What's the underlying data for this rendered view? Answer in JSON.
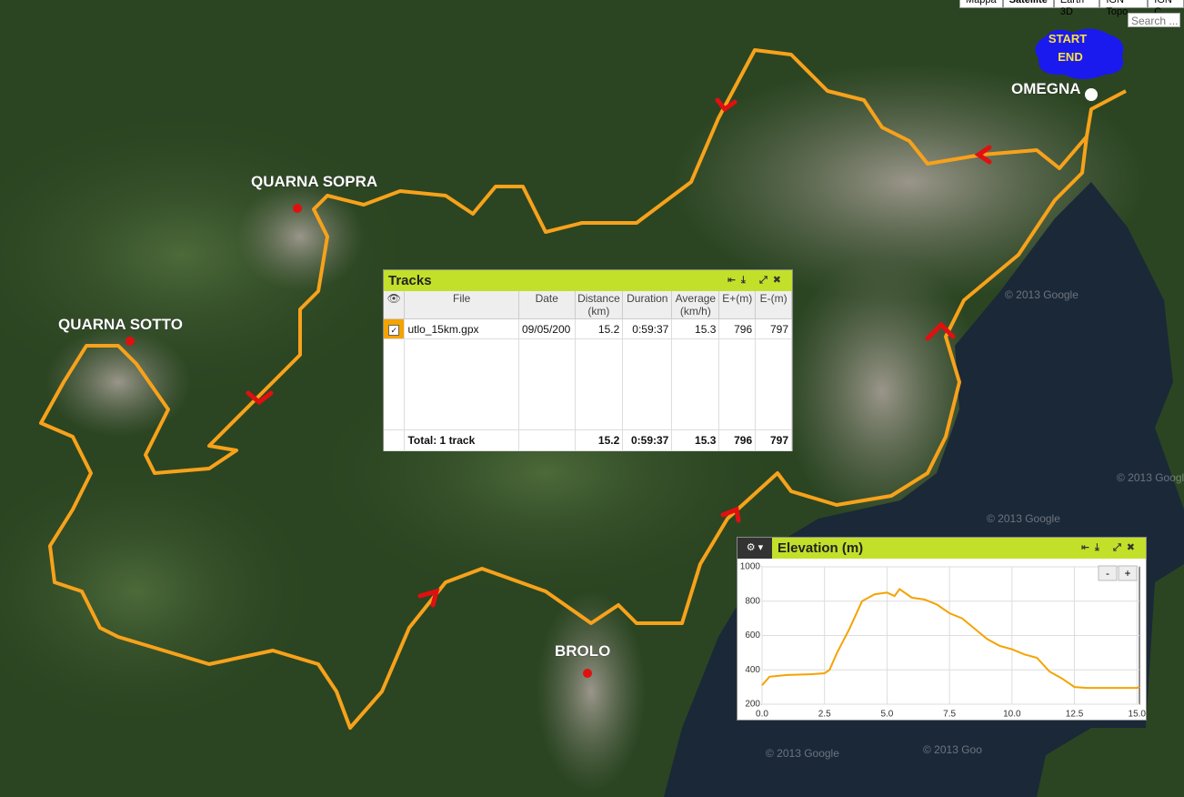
{
  "map": {
    "tabs": [
      "Mappa",
      "Satellite",
      "Earth 3D",
      "IGN Topo",
      "IGN C"
    ],
    "search_placeholder": "Search ...",
    "places": [
      "QUARNA SOPRA",
      "QUARNA SOTTO",
      "BROLO",
      "OMEGNA"
    ],
    "start_end": [
      "START",
      "END"
    ],
    "watermarks": [
      "© 2013 Google",
      "© 2013 Google",
      "© 2013 Google",
      "© 2013 Google",
      "© 2013 Goo"
    ]
  },
  "tracks": {
    "title": "Tracks",
    "columns": [
      "File",
      "Date",
      "Distance (km)",
      "Duration",
      "Average (km/h)",
      "E+(m)",
      "E-(m)"
    ],
    "rows": [
      [
        "utlo_15km.gpx",
        "09/05/200",
        15.2,
        "0:59:37",
        15.3,
        796,
        797
      ]
    ],
    "total": [
      "Total: 1 track",
      15.2,
      "0:59:37",
      15.3,
      796,
      797
    ]
  },
  "chart_data": {
    "type": "line",
    "title": "Elevation (m)",
    "color": "#f5a300",
    "grid": true,
    "x": [
      0,
      0.3,
      1,
      2,
      2.5,
      2.7,
      3,
      3.5,
      4,
      4.5,
      5,
      5.3,
      5.5,
      6,
      6.5,
      7,
      7.5,
      8,
      8.5,
      9,
      9.5,
      10,
      10.5,
      11,
      11.5,
      12,
      12.5,
      13,
      14,
      15,
      15.1
    ],
    "values": [
      310,
      360,
      370,
      375,
      380,
      400,
      500,
      640,
      800,
      840,
      850,
      830,
      870,
      820,
      810,
      780,
      730,
      700,
      640,
      580,
      540,
      520,
      490,
      470,
      390,
      350,
      300,
      295,
      295,
      295,
      300
    ],
    "xlim": [
      0,
      15.1
    ],
    "ylim": [
      200,
      1000
    ],
    "xticks": [
      {
        "value": 0,
        "label": "0.0"
      },
      {
        "value": 2.5,
        "label": "2.5"
      },
      {
        "value": 5,
        "label": "5.0"
      },
      {
        "value": 7.5,
        "label": "7.5"
      },
      {
        "value": 10,
        "label": "10.0"
      },
      {
        "value": 12.5,
        "label": "12.5"
      },
      {
        "value": 15,
        "label": "15.0"
      }
    ],
    "yticks": [
      200,
      400,
      600,
      800,
      1000
    ],
    "zoom_buttons": [
      "-",
      "+"
    ]
  }
}
